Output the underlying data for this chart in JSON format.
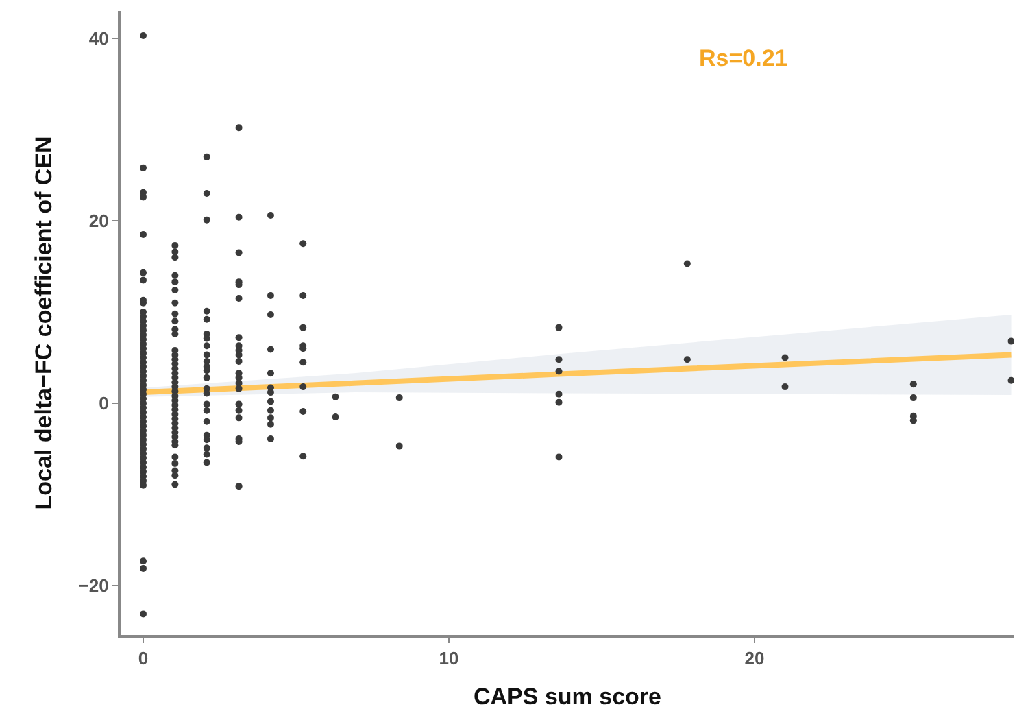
{
  "chart_data": {
    "type": "scatter",
    "xlabel": "CAPS sum score",
    "ylabel": "Local delta−FC coefficient of CEN",
    "annotations": [
      "Rs=0.21"
    ],
    "xlim": [
      -0.74,
      28.5
    ],
    "ylim": [
      -25.4,
      43
    ],
    "xticks": [
      0,
      10,
      20
    ],
    "yticks": [
      -20,
      0,
      20,
      40
    ],
    "marker": "circle",
    "series": [
      {
        "color": "#3a3a3a",
        "x": [
          0,
          0,
          0,
          0,
          0,
          0,
          0,
          0,
          0,
          0,
          0,
          0,
          0,
          0,
          0,
          0,
          0,
          0,
          0,
          0,
          0,
          0,
          0,
          0,
          0,
          0,
          0,
          0,
          0,
          0,
          0,
          0,
          0,
          0,
          0,
          0,
          0,
          0,
          0,
          0,
          0,
          0,
          0,
          0,
          0,
          0,
          0,
          0,
          0,
          0,
          0,
          1.04,
          1.04,
          1.04,
          1.04,
          1.04,
          1.04,
          1.04,
          1.04,
          1.04,
          1.04,
          1.04,
          1.04,
          1.04,
          1.04,
          1.04,
          1.04,
          1.04,
          1.04,
          1.04,
          1.04,
          1.04,
          1.04,
          1.04,
          1.04,
          1.04,
          1.04,
          1.04,
          1.04,
          1.04,
          1.04,
          1.04,
          1.04,
          1.04,
          1.04,
          1.04,
          1.04,
          1.04,
          1.04,
          2.08,
          2.08,
          2.08,
          2.08,
          2.08,
          2.08,
          2.08,
          2.08,
          2.08,
          2.08,
          2.08,
          2.08,
          2.08,
          2.08,
          2.08,
          2.08,
          2.08,
          2.08,
          2.08,
          2.08,
          2.08,
          2.08,
          2.08,
          3.13,
          3.13,
          3.13,
          3.13,
          3.13,
          3.13,
          3.13,
          3.13,
          3.13,
          3.13,
          3.13,
          3.13,
          3.13,
          3.13,
          3.13,
          3.13,
          3.13,
          3.13,
          3.13,
          3.13,
          3.13,
          4.17,
          4.17,
          4.17,
          4.17,
          4.17,
          4.17,
          4.17,
          4.17,
          4.17,
          4.17,
          4.17,
          4.17,
          5.23,
          5.23,
          5.23,
          5.23,
          5.23,
          5.23,
          5.23,
          5.23,
          5.23,
          6.29,
          6.29,
          8.38,
          8.38,
          13.6,
          13.6,
          13.6,
          13.6,
          13.6,
          13.6,
          17.8,
          17.8,
          21.0,
          21.0,
          25.2,
          25.2,
          25.2,
          25.2,
          28.4,
          28.4
        ],
        "values": [
          40.3,
          25.8,
          23.1,
          22.6,
          18.5,
          14.3,
          13.5,
          11.3,
          11.0,
          10.0,
          9.5,
          9.0,
          8.5,
          8.0,
          7.5,
          7.0,
          6.5,
          6.0,
          5.5,
          5.0,
          4.5,
          4.0,
          3.5,
          3.0,
          2.5,
          2.0,
          1.5,
          1.0,
          0.5,
          0.0,
          -0.5,
          -1.0,
          -1.5,
          -2.0,
          -2.5,
          -3.0,
          -3.5,
          -4.0,
          -4.5,
          -5.0,
          -5.5,
          -6.0,
          -6.5,
          -7.0,
          -7.5,
          -8.0,
          -8.5,
          -9.0,
          -17.3,
          -18.1,
          -23.1,
          17.3,
          16.6,
          16.0,
          14.0,
          13.3,
          12.4,
          11.0,
          9.8,
          9.0,
          8.1,
          7.6,
          5.8,
          5.3,
          4.8,
          4.3,
          3.8,
          3.3,
          2.8,
          2.3,
          1.8,
          1.3,
          0.8,
          0.3,
          -0.2,
          -0.7,
          -1.2,
          -1.7,
          -2.2,
          -2.7,
          -3.2,
          -3.7,
          -4.2,
          -4.6,
          -5.9,
          -6.6,
          -7.4,
          -7.9,
          -8.9,
          27.0,
          23.0,
          20.1,
          10.1,
          9.2,
          7.6,
          7.1,
          6.3,
          5.3,
          4.6,
          4.0,
          3.6,
          2.8,
          1.6,
          1.1,
          -0.1,
          -0.8,
          -2.0,
          -3.5,
          -4.0,
          -4.9,
          -5.6,
          -6.5,
          30.2,
          20.4,
          16.5,
          13.3,
          13.0,
          11.5,
          7.2,
          6.3,
          5.8,
          5.3,
          4.6,
          3.3,
          2.8,
          2.2,
          1.6,
          -0.1,
          -0.8,
          -1.6,
          -3.9,
          -4.2,
          -9.1,
          20.6,
          11.8,
          9.7,
          5.9,
          3.3,
          1.7,
          1.2,
          0.2,
          -0.8,
          -1.6,
          -2.3,
          -3.9,
          17.5,
          11.8,
          8.3,
          6.3,
          6.0,
          4.5,
          1.8,
          -0.9,
          -5.8,
          0.7,
          -1.5,
          0.6,
          -4.7,
          8.3,
          4.8,
          3.5,
          1.0,
          0.1,
          -5.9,
          15.3,
          4.8,
          5.0,
          1.8,
          2.1,
          0.6,
          -1.4,
          -1.9,
          6.8,
          2.5
        ]
      },
      {
        "type": "line",
        "marker": "none",
        "color": "#ffc65c",
        "x": [
          0,
          6.9,
          13.6,
          28.4
        ],
        "values": [
          1.2,
          2.2,
          3.2,
          5.3
        ],
        "lower": [
          0.7,
          1.2,
          1.1,
          0.9
        ],
        "upper": [
          1.7,
          3.3,
          5.4,
          9.7
        ]
      }
    ]
  }
}
